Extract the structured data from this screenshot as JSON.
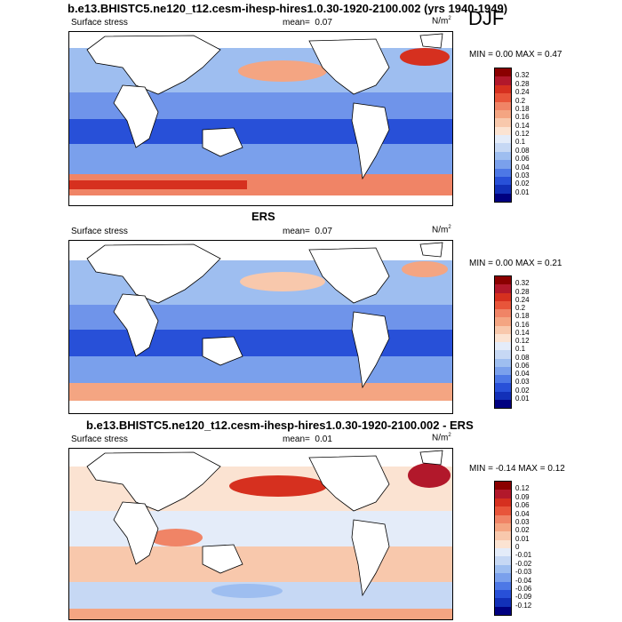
{
  "season": "DJF",
  "units_base": "N/m",
  "units_exp": "2",
  "panels": [
    {
      "title": "b.e13.BHISTC5.ne120_t12.cesm-ihesp-hires1.0.30-1920-2100.002 (yrs 1940-1949)",
      "variable": "Surface stress",
      "mean_label": "mean=",
      "mean_value": "0.07",
      "minmax": "MIN =  0.00 MAX =  0.47",
      "colorbar": {
        "labels": [
          "0.32",
          "0.28",
          "0.24",
          "0.2",
          "0.18",
          "0.16",
          "0.14",
          "0.12",
          "0.1",
          "0.08",
          "0.06",
          "0.04",
          "0.03",
          "0.02",
          "0.01"
        ],
        "colors": [
          "#8b0000",
          "#b2182b",
          "#d6301f",
          "#e8553a",
          "#f08466",
          "#f4a582",
          "#f8c8ac",
          "#fbe3d2",
          "#e4ecf9",
          "#c6d8f4",
          "#9ebef0",
          "#7aa0ec",
          "#4d78e6",
          "#2850d8",
          "#1230b8",
          "#000080"
        ]
      }
    },
    {
      "title": "ERS",
      "variable": "Surface stress",
      "mean_label": "mean=",
      "mean_value": "0.07",
      "minmax": "MIN =  0.00 MAX =  0.21",
      "colorbar": {
        "labels": [
          "0.32",
          "0.28",
          "0.24",
          "0.2",
          "0.18",
          "0.16",
          "0.14",
          "0.12",
          "0.1",
          "0.08",
          "0.06",
          "0.04",
          "0.03",
          "0.02",
          "0.01"
        ],
        "colors": [
          "#8b0000",
          "#b2182b",
          "#d6301f",
          "#e8553a",
          "#f08466",
          "#f4a582",
          "#f8c8ac",
          "#fbe3d2",
          "#e4ecf9",
          "#c6d8f4",
          "#9ebef0",
          "#7aa0ec",
          "#4d78e6",
          "#2850d8",
          "#1230b8",
          "#000080"
        ]
      }
    },
    {
      "title": "b.e13.BHISTC5.ne120_t12.cesm-ihesp-hires1.0.30-1920-2100.002 - ERS",
      "variable": "Surface stress",
      "mean_label": "mean=",
      "mean_value": "0.01",
      "minmax": "MIN = -0.14 MAX =  0.12",
      "colorbar": {
        "labels": [
          "0.12",
          "0.09",
          "0.06",
          "0.04",
          "0.03",
          "0.02",
          "0.01",
          "0",
          "-0.01",
          "-0.02",
          "-0.03",
          "-0.04",
          "-0.06",
          "-0.09",
          "-0.12"
        ],
        "colors": [
          "#8b0000",
          "#b2182b",
          "#d6301f",
          "#e8553a",
          "#f08466",
          "#f4a582",
          "#f8c8ac",
          "#fbe3d2",
          "#e4ecf9",
          "#c6d8f4",
          "#9ebef0",
          "#7aa0ec",
          "#4d78e6",
          "#2850d8",
          "#1230b8",
          "#000080"
        ]
      }
    }
  ]
}
